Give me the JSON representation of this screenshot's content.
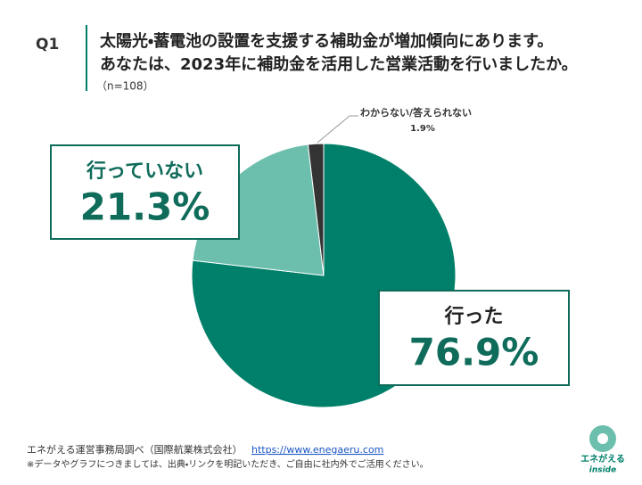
{
  "chart_data": {
    "type": "pie",
    "question": "Q1",
    "title": "太陽光・蓄電池の設置を支援する補助金が増加傾向にあります。",
    "subtitle": "あなたは、2023年に補助金を活用した営業活動を行いましたか。",
    "note": "（n=108）",
    "categories": [
      "行った",
      "行っていない",
      "わからない/答えられない"
    ],
    "values": [
      76.9,
      21.3,
      1.9
    ],
    "value_labels": [
      "76.9%",
      "21.3%",
      "1.9%"
    ],
    "colors": [
      "#00806a",
      "#6dbfad",
      "#333333"
    ]
  },
  "footer": {
    "source": "エネがえる運営事務局調べ（国際航業株式会社）",
    "url": "https://www.enegaeru.com",
    "disclaimer": "※データやグラフにつきましては、出典・リンクを明記いただき、ご自由に社内外でご活用ください。"
  },
  "logo": {
    "name": "エネがえる",
    "sub": "inside"
  }
}
